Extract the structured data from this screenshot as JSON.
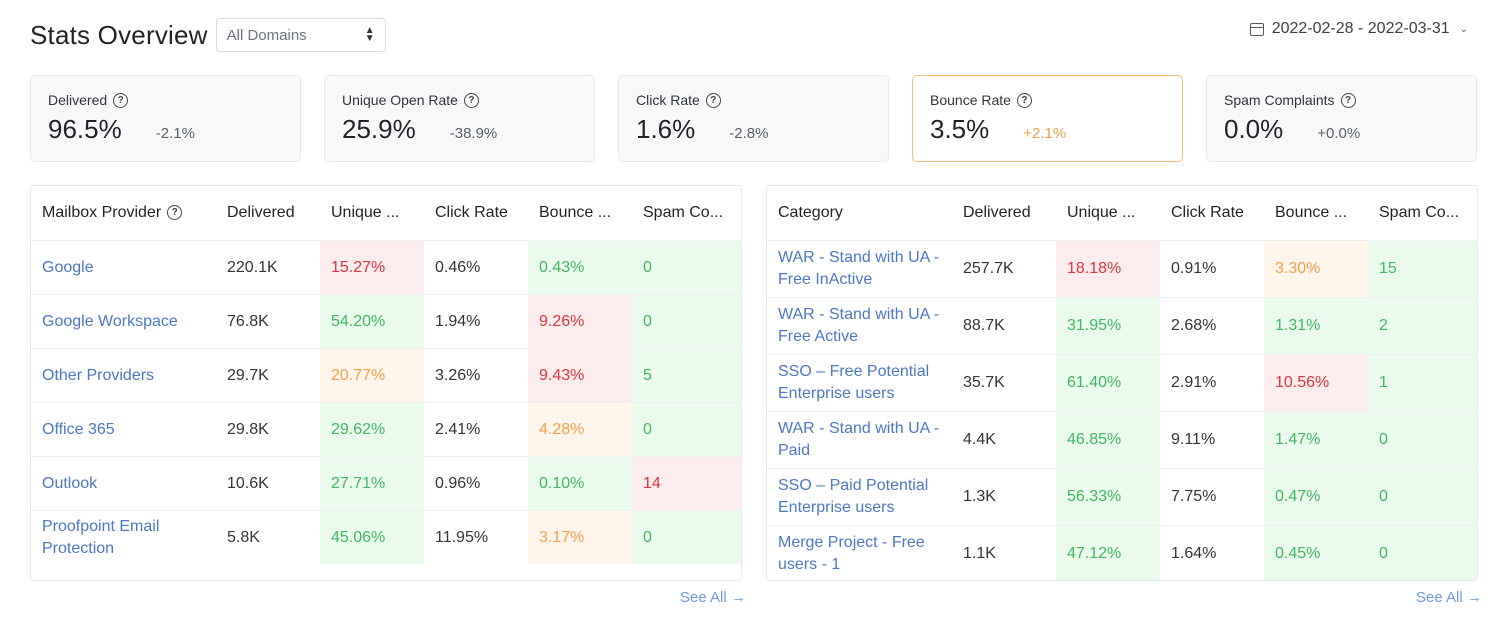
{
  "header": {
    "title": "Stats Overview",
    "domain_select": "All Domains",
    "date_range": "2022-02-28 - 2022-03-31"
  },
  "cards": [
    {
      "label": "Delivered",
      "value": "96.5%",
      "change": "-2.1%"
    },
    {
      "label": "Unique Open Rate",
      "value": "25.9%",
      "change": "-38.9%"
    },
    {
      "label": "Click Rate",
      "value": "1.6%",
      "change": "-2.8%"
    },
    {
      "label": "Bounce Rate",
      "value": "3.5%",
      "change": "+2.1%"
    },
    {
      "label": "Spam Complaints",
      "value": "0.0%",
      "change": "+0.0%"
    }
  ],
  "provider_table": {
    "headers": [
      "Mailbox Provider",
      "Delivered",
      "Unique ...",
      "Click Rate",
      "Bounce ...",
      "Spam Co..."
    ],
    "rows": [
      {
        "name": "Google",
        "delivered": "220.1K",
        "open": "15.27%",
        "click": "0.46%",
        "bounce": "0.43%",
        "spam": "0"
      },
      {
        "name": "Google Workspace",
        "delivered": "76.8K",
        "open": "54.20%",
        "click": "1.94%",
        "bounce": "9.26%",
        "spam": "0"
      },
      {
        "name": "Other Providers",
        "delivered": "29.7K",
        "open": "20.77%",
        "click": "3.26%",
        "bounce": "9.43%",
        "spam": "5"
      },
      {
        "name": "Office 365",
        "delivered": "29.8K",
        "open": "29.62%",
        "click": "2.41%",
        "bounce": "4.28%",
        "spam": "0"
      },
      {
        "name": "Outlook",
        "delivered": "10.6K",
        "open": "27.71%",
        "click": "0.96%",
        "bounce": "0.10%",
        "spam": "14"
      },
      {
        "name": "Proofpoint Email Protection",
        "delivered": "5.8K",
        "open": "45.06%",
        "click": "11.95%",
        "bounce": "3.17%",
        "spam": "0"
      }
    ],
    "see_all": "See All →"
  },
  "category_table": {
    "headers": [
      "Category",
      "Delivered",
      "Unique ...",
      "Click Rate",
      "Bounce ...",
      "Spam Co..."
    ],
    "rows": [
      {
        "name": "WAR - Stand with UA - Free InActive",
        "delivered": "257.7K",
        "open": "18.18%",
        "click": "0.91%",
        "bounce": "3.30%",
        "spam": "15"
      },
      {
        "name": "WAR - Stand with UA - Free Active",
        "delivered": "88.7K",
        "open": "31.95%",
        "click": "2.68%",
        "bounce": "1.31%",
        "spam": "2"
      },
      {
        "name": "SSO – Free Potential Enterprise users",
        "delivered": "35.7K",
        "open": "61.40%",
        "click": "2.91%",
        "bounce": "10.56%",
        "spam": "1"
      },
      {
        "name": "WAR - Stand with UA - Paid",
        "delivered": "4.4K",
        "open": "46.85%",
        "click": "9.11%",
        "bounce": "1.47%",
        "spam": "0"
      },
      {
        "name": "SSO – Paid Potential Enterprise users",
        "delivered": "1.3K",
        "open": "56.33%",
        "click": "7.75%",
        "bounce": "0.47%",
        "spam": "0"
      },
      {
        "name": "Merge Project - Free users - 1",
        "delivered": "1.1K",
        "open": "47.12%",
        "click": "1.64%",
        "bounce": "0.45%",
        "spam": "0"
      }
    ],
    "see_all": "See All →"
  },
  "colors": {
    "good": "#3fb861",
    "bad": "#d9363e",
    "warn": "#f0a04b",
    "link": "#4a78c2"
  }
}
